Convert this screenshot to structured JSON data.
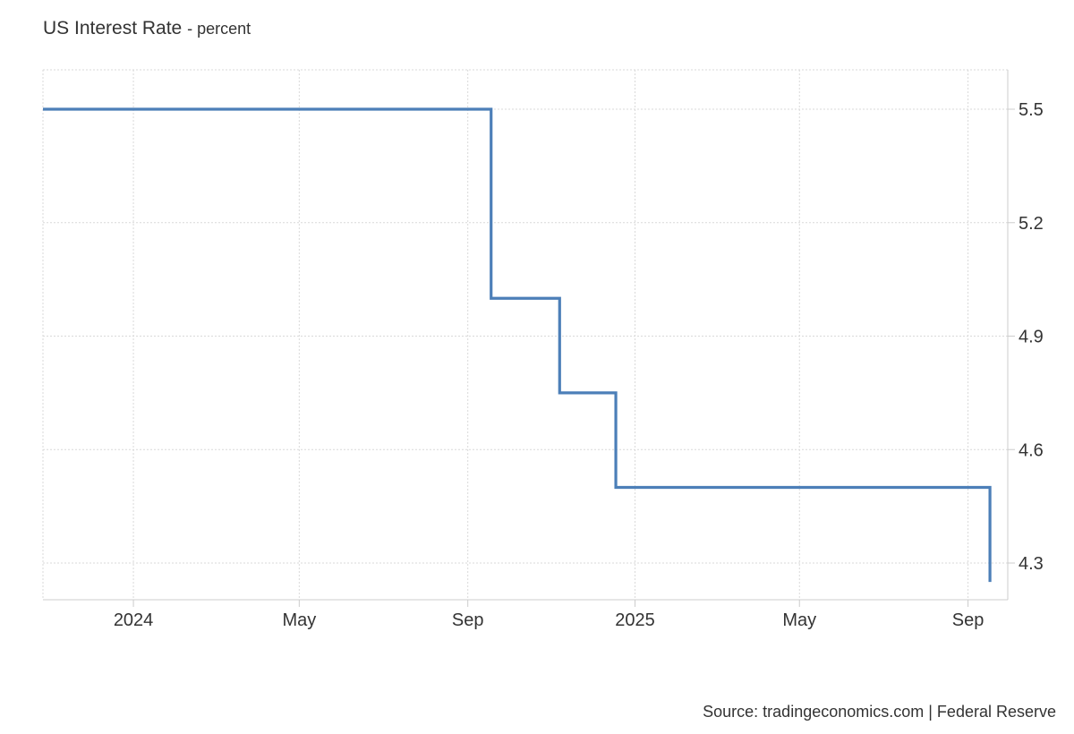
{
  "header": {
    "title": "US Interest Rate",
    "unit_suffix": "- percent"
  },
  "source": "Source: tradingeconomics.com | Federal Reserve",
  "colors": {
    "line": "#4c7fb8",
    "grid": "#d9d9d9",
    "axis": "#cccccc",
    "text": "#333333"
  },
  "chart_data": {
    "type": "line",
    "step": true,
    "title": "US Interest Rate",
    "unit": "percent",
    "xlabel": "",
    "ylabel": "",
    "x_ticks": [
      {
        "date": "2024-01-01",
        "label": "2024"
      },
      {
        "date": "2024-05-01",
        "label": "May"
      },
      {
        "date": "2024-09-01",
        "label": "Sep"
      },
      {
        "date": "2025-01-01",
        "label": "2025"
      },
      {
        "date": "2025-05-01",
        "label": "May"
      },
      {
        "date": "2025-09-01",
        "label": "Sep"
      }
    ],
    "y_ticks": [
      5.5,
      5.2,
      4.9,
      4.6,
      4.3
    ],
    "y_tick_labels": [
      "5.5",
      "5.2",
      "4.9",
      "4.6",
      "4.3"
    ],
    "ylim": [
      4.2,
      5.6
    ],
    "xlim": [
      "2023-10-27",
      "2025-09-30"
    ],
    "y_axis_side": "right",
    "grid": true,
    "series": [
      {
        "x": [
          "2023-10-27",
          "2024-09-18",
          "2024-11-07",
          "2024-12-18",
          "2025-09-17"
        ],
        "values": [
          5.5,
          5.0,
          4.75,
          4.5,
          4.25
        ]
      }
    ]
  }
}
